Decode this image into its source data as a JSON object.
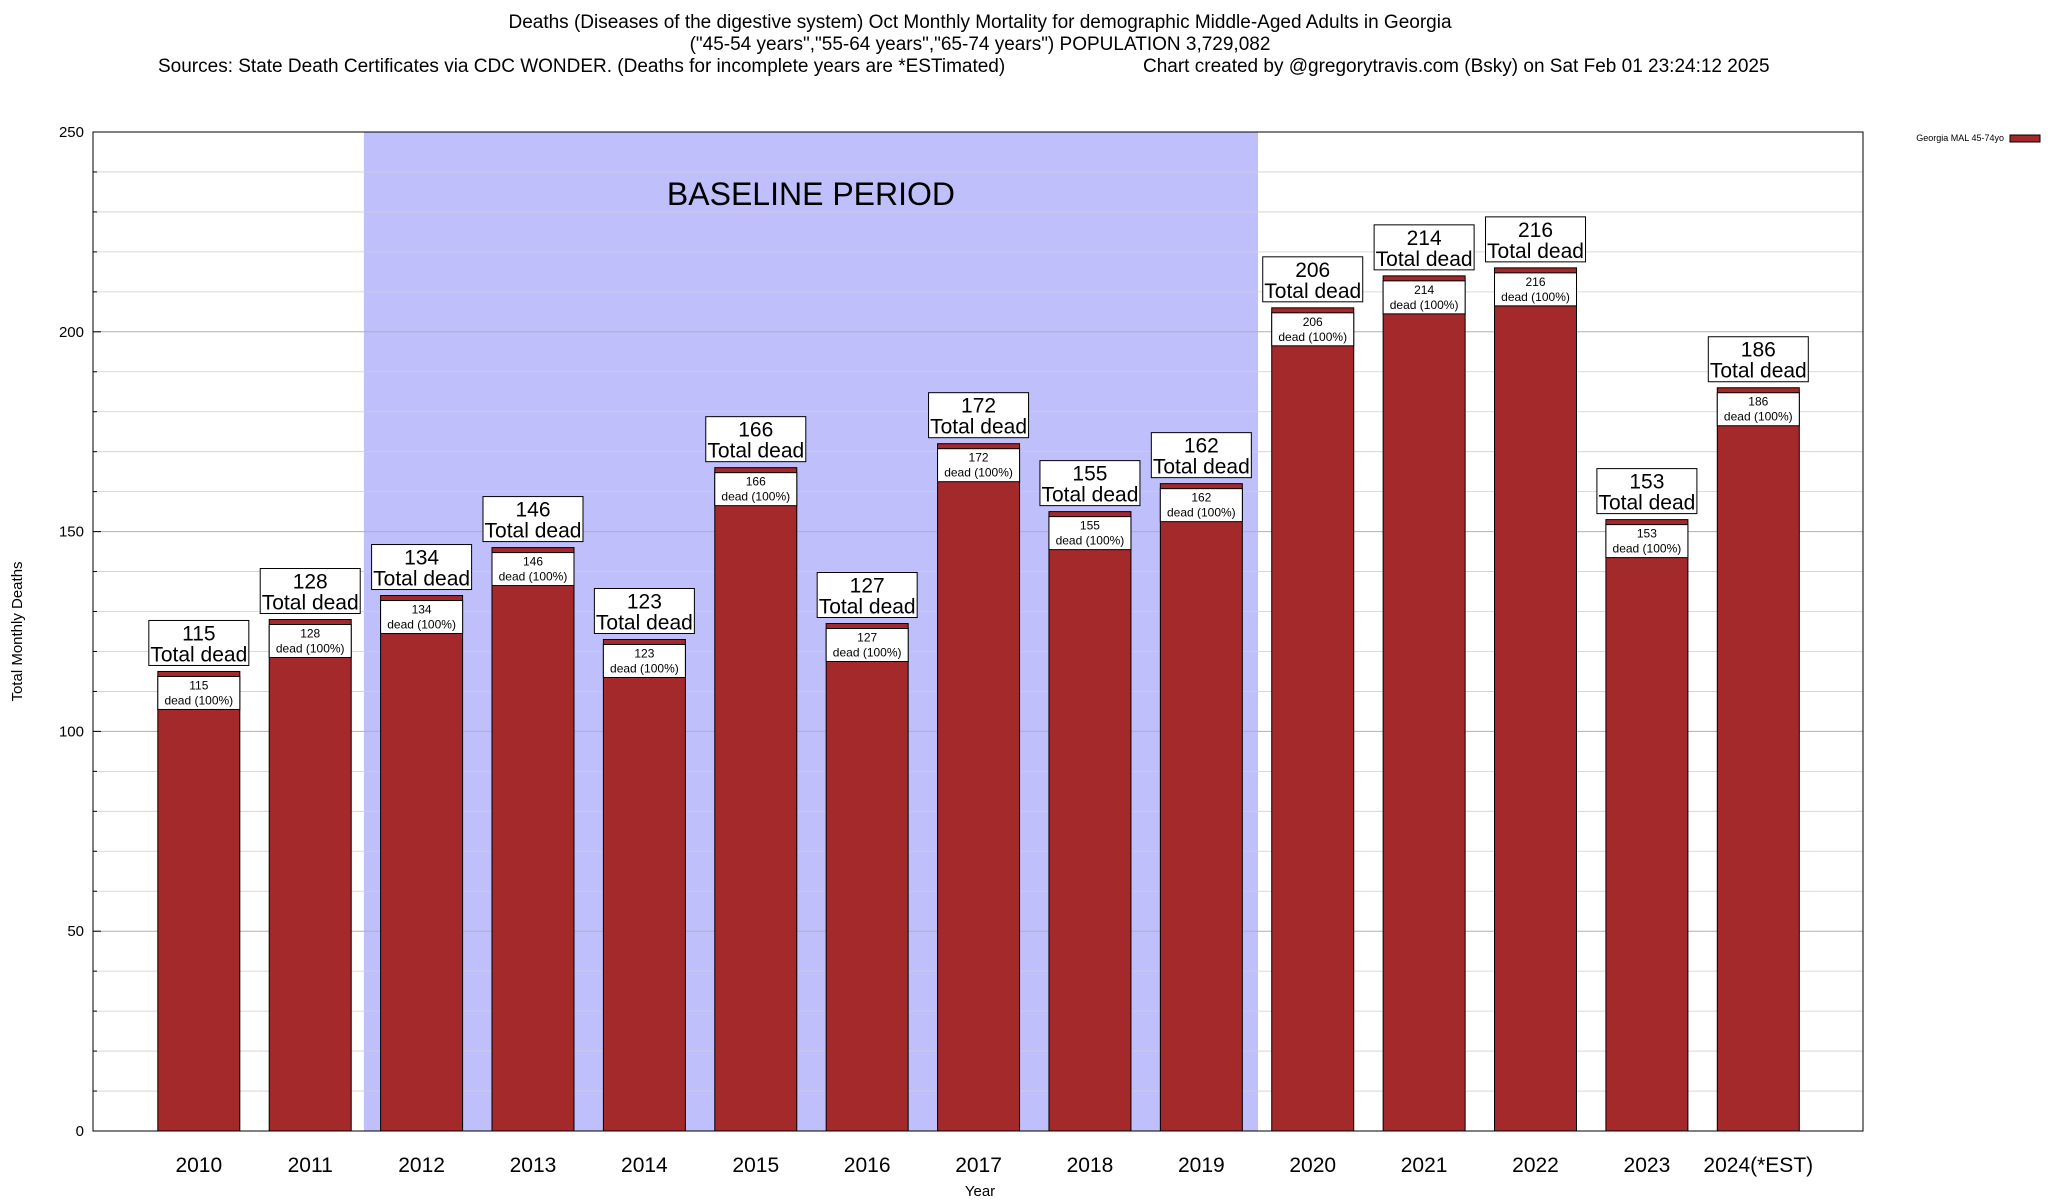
{
  "header": {
    "title_line1": "Deaths (Diseases of the digestive system) Oct Monthly Mortality for demographic Middle-Aged Adults in Georgia",
    "title_line2": "(\"45-54 years\",\"55-64 years\",\"65-74 years\") POPULATION 3,729,082",
    "sources": "Sources: State Death Certificates via CDC WONDER. (Deaths for incomplete years are *ESTimated)",
    "credit": "Chart created by @gregorytravis.com (Bsky) on Sat Feb 01 23:24:12 2025"
  },
  "chart_data": {
    "type": "bar",
    "xlabel": "Year",
    "ylabel": "Total Monthly Deaths",
    "ylim": [
      0,
      250
    ],
    "yticks": [
      0,
      50,
      100,
      150,
      200,
      250
    ],
    "grid": true,
    "legend_position": "top-right",
    "categories": [
      "2010",
      "2011",
      "2012",
      "2013",
      "2014",
      "2015",
      "2016",
      "2017",
      "2018",
      "2019",
      "2020",
      "2021",
      "2022",
      "2023",
      "2024(*EST)"
    ],
    "series": [
      {
        "name": "Georgia MAL 45-74yo",
        "color": "#a3292b",
        "values": [
          115,
          128,
          134,
          146,
          123,
          166,
          127,
          172,
          155,
          162,
          206,
          214,
          216,
          153,
          186
        ]
      }
    ],
    "total_label_suffix": "Total dead",
    "inner_label_suffix": "dead (100%)",
    "baseline_period": {
      "label": "BASELINE PERIOD",
      "from": "2012",
      "to": "2019",
      "color": "#bfbffc"
    }
  }
}
